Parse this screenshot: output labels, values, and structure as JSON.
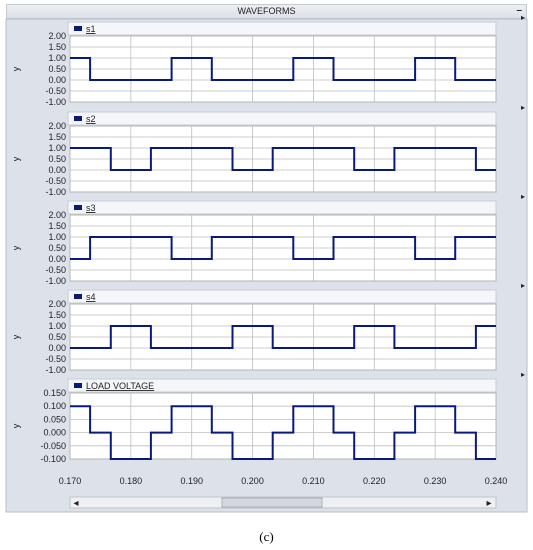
{
  "window": {
    "title": "WAVEFORMS",
    "minimize_label": "–"
  },
  "caption": "(c)",
  "axis": {
    "y_label": "y",
    "x_ticks": [
      "0.170",
      "0.180",
      "0.190",
      "0.200",
      "0.210",
      "0.220",
      "0.230",
      "0.240"
    ]
  },
  "colors": {
    "trace": "#0a1a7a",
    "grid": "#bdbdbd",
    "panel_bg": "#ffffff",
    "frame": "#dde2ea"
  },
  "scrollbar": {
    "left_arrow": "◂",
    "right_arrow": "▸",
    "thumb_fraction_start": 0.35,
    "thumb_fraction_end": 0.6
  },
  "chart_data": [
    {
      "type": "line",
      "series": [
        {
          "name": "s1",
          "x": [
            0.17,
            0.1733,
            0.1733,
            0.1867,
            0.1867,
            0.1933,
            0.1933,
            0.2067,
            0.2067,
            0.2133,
            0.2133,
            0.2267,
            0.2267,
            0.2333,
            0.2333,
            0.24
          ],
          "y": [
            1,
            1,
            0,
            0,
            1,
            1,
            0,
            0,
            1,
            1,
            0,
            0,
            1,
            1,
            0,
            0
          ]
        }
      ],
      "xlim": [
        0.17,
        0.24
      ],
      "ylim": [
        -1.0,
        2.0
      ],
      "y_ticks": [
        "2.00",
        "1.50",
        "1.00",
        "0.50",
        "0.00",
        "-0.50",
        "-1.00"
      ],
      "grid": true
    },
    {
      "type": "line",
      "series": [
        {
          "name": "s2",
          "x": [
            0.17,
            0.1767,
            0.1767,
            0.1833,
            0.1833,
            0.1967,
            0.1967,
            0.2033,
            0.2033,
            0.2167,
            0.2167,
            0.2233,
            0.2233,
            0.2367,
            0.2367,
            0.24
          ],
          "y": [
            1,
            1,
            0,
            0,
            1,
            1,
            0,
            0,
            1,
            1,
            0,
            0,
            1,
            1,
            0,
            0
          ]
        }
      ],
      "xlim": [
        0.17,
        0.24
      ],
      "ylim": [
        -1.0,
        2.0
      ],
      "y_ticks": [
        "2.00",
        "1.50",
        "1.00",
        "0.50",
        "0.00",
        "-0.50",
        "-1.00"
      ],
      "grid": true
    },
    {
      "type": "line",
      "series": [
        {
          "name": "s3",
          "x": [
            0.17,
            0.1733,
            0.1733,
            0.1867,
            0.1867,
            0.1933,
            0.1933,
            0.2067,
            0.2067,
            0.2133,
            0.2133,
            0.2267,
            0.2267,
            0.2333,
            0.2333,
            0.24
          ],
          "y": [
            0,
            0,
            1,
            1,
            0,
            0,
            1,
            1,
            0,
            0,
            1,
            1,
            0,
            0,
            1,
            1
          ]
        }
      ],
      "xlim": [
        0.17,
        0.24
      ],
      "ylim": [
        -1.0,
        2.0
      ],
      "y_ticks": [
        "2.00",
        "1.50",
        "1.00",
        "0.50",
        "0.00",
        "-0.50",
        "-1.00"
      ],
      "grid": true
    },
    {
      "type": "line",
      "series": [
        {
          "name": "s4",
          "x": [
            0.17,
            0.1767,
            0.1767,
            0.1833,
            0.1833,
            0.1967,
            0.1967,
            0.2033,
            0.2033,
            0.2167,
            0.2167,
            0.2233,
            0.2233,
            0.2367,
            0.2367,
            0.24
          ],
          "y": [
            0,
            0,
            1,
            1,
            0,
            0,
            1,
            1,
            0,
            0,
            1,
            1,
            0,
            0,
            1,
            1
          ]
        }
      ],
      "xlim": [
        0.17,
        0.24
      ],
      "ylim": [
        -1.0,
        2.0
      ],
      "y_ticks": [
        "2.00",
        "1.50",
        "1.00",
        "0.50",
        "0.00",
        "-0.50",
        "-1.00"
      ],
      "grid": true
    },
    {
      "type": "line",
      "series": [
        {
          "name": "LOAD VOLTAGE",
          "x": [
            0.17,
            0.1733,
            0.1733,
            0.1767,
            0.1767,
            0.1833,
            0.1833,
            0.1867,
            0.1867,
            0.1933,
            0.1933,
            0.1967,
            0.1967,
            0.2033,
            0.2033,
            0.2067,
            0.2067,
            0.2133,
            0.2133,
            0.2167,
            0.2167,
            0.2233,
            0.2233,
            0.2267,
            0.2267,
            0.2333,
            0.2333,
            0.2367,
            0.2367,
            0.24
          ],
          "y": [
            0.1,
            0.1,
            0,
            0,
            -0.1,
            -0.1,
            0,
            0,
            0.1,
            0.1,
            0,
            0,
            -0.1,
            -0.1,
            0,
            0,
            0.1,
            0.1,
            0,
            0,
            -0.1,
            -0.1,
            0,
            0,
            0.1,
            0.1,
            0,
            0,
            -0.1,
            -0.1
          ]
        }
      ],
      "xlim": [
        0.17,
        0.24
      ],
      "ylim": [
        -0.1,
        0.15
      ],
      "y_ticks": [
        "0.150",
        "0.100",
        "0.050",
        "0.000",
        "-0.050",
        "-0.100"
      ],
      "grid": true
    }
  ]
}
